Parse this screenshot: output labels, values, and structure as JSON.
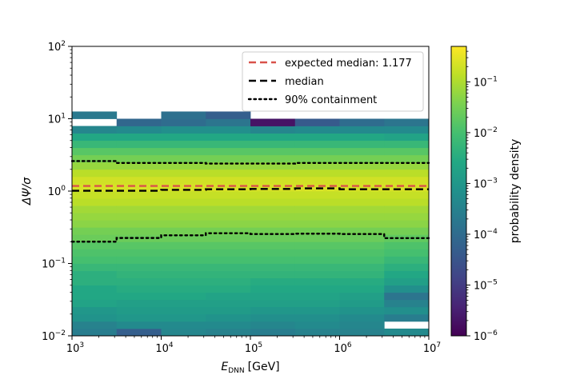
{
  "chart_data": {
    "type": "heatmap",
    "x_scale": "log",
    "y_scale": "log",
    "xlim": [
      1000,
      10000000
    ],
    "ylim": [
      0.01,
      100
    ],
    "xlabel": {
      "main": "E",
      "sub": "DNN",
      "unit": "[GeV]"
    },
    "ylabel": {
      "main": "ΔΨ/σ"
    },
    "x_ticks": [
      {
        "value": 1000,
        "base": "10",
        "exp": "3"
      },
      {
        "value": 10000,
        "base": "10",
        "exp": "4"
      },
      {
        "value": 100000,
        "base": "10",
        "exp": "5"
      },
      {
        "value": 1000000,
        "base": "10",
        "exp": "6"
      },
      {
        "value": 10000000,
        "base": "10",
        "exp": "7"
      }
    ],
    "y_ticks": [
      {
        "value": 0.01,
        "base": "10",
        "exp": "−2"
      },
      {
        "value": 0.1,
        "base": "10",
        "exp": "−1"
      },
      {
        "value": 1,
        "base": "10",
        "exp": "0"
      },
      {
        "value": 10,
        "base": "10",
        "exp": "1"
      },
      {
        "value": 100,
        "base": "10",
        "exp": "2"
      }
    ],
    "x_bin_edges": [
      1000,
      3162,
      10000,
      31623,
      100000,
      316228,
      1000000,
      3162278,
      10000000
    ],
    "y_bin_edges_log10": [
      -2.0,
      -1.9,
      -1.8,
      -1.7,
      -1.6,
      -1.5,
      -1.4,
      -1.3,
      -1.2,
      -1.1,
      -1.0,
      -0.9,
      -0.8,
      -0.7,
      -0.6,
      -0.5,
      -0.4,
      -0.3,
      -0.2,
      -0.1,
      0.0,
      0.1,
      0.2,
      0.3,
      0.4,
      0.5,
      0.6,
      0.7,
      0.8,
      0.9,
      1.0,
      1.1,
      1.2
    ],
    "density_log10_by_x_column": [
      [
        -3.6,
        -3.5,
        -3.1,
        -3.0,
        -2.7,
        -2.6,
        -2.6,
        -2.4,
        -2.4,
        -2.2,
        -2.0,
        -1.9,
        -1.8,
        -1.6,
        -1.5,
        -1.3,
        -1.2,
        -1.1,
        -0.9,
        -0.8,
        -0.65,
        -0.7,
        -0.9,
        -1.2,
        -1.5,
        -1.8,
        -2.2,
        -2.6,
        -3.4,
        null,
        -3.7,
        null
      ],
      [
        -4.3,
        -3.3,
        -3.0,
        -2.9,
        -2.8,
        -2.6,
        -2.5,
        -2.4,
        -2.3,
        -2.2,
        -2.0,
        -1.9,
        -1.8,
        -1.6,
        -1.5,
        -1.3,
        -1.2,
        -1.1,
        -0.9,
        -0.8,
        -0.65,
        -0.7,
        -0.9,
        -1.2,
        -1.5,
        -1.8,
        -2.2,
        -2.6,
        -3.3,
        -4.1,
        null,
        null
      ],
      [
        -3.4,
        -3.3,
        -3.0,
        -2.9,
        -2.8,
        -2.6,
        -2.5,
        -2.4,
        -2.3,
        -2.2,
        -2.0,
        -1.9,
        -1.8,
        -1.6,
        -1.5,
        -1.3,
        -1.2,
        -1.1,
        -0.9,
        -0.8,
        -0.65,
        -0.7,
        -0.9,
        -1.2,
        -1.5,
        -1.8,
        -2.2,
        -2.6,
        -3.2,
        -4.0,
        -3.9,
        null
      ],
      [
        -3.5,
        -3.3,
        -3.1,
        -2.9,
        -2.8,
        -2.7,
        -2.5,
        -2.4,
        -2.3,
        -2.2,
        -2.0,
        -1.9,
        -1.8,
        -1.6,
        -1.5,
        -1.3,
        -1.2,
        -1.1,
        -0.9,
        -0.8,
        -0.65,
        -0.7,
        -0.9,
        -1.2,
        -1.5,
        -1.8,
        -2.2,
        -2.6,
        -3.2,
        -3.8,
        -4.3,
        null
      ],
      [
        -3.6,
        -3.4,
        -3.2,
        -3.0,
        -2.8,
        -2.7,
        -2.6,
        -2.5,
        -2.3,
        -2.2,
        -2.0,
        -1.9,
        -1.8,
        -1.6,
        -1.5,
        -1.3,
        -1.2,
        -1.1,
        -0.9,
        -0.8,
        -0.65,
        -0.7,
        -0.9,
        -1.2,
        -1.5,
        -1.8,
        -2.2,
        -2.6,
        -3.4,
        -5.7,
        null,
        null
      ],
      [
        -3.5,
        -3.3,
        -3.2,
        -3.0,
        -2.8,
        -2.7,
        -2.6,
        -2.5,
        -2.3,
        -2.2,
        -2.0,
        -1.9,
        -1.8,
        -1.6,
        -1.5,
        -1.3,
        -1.2,
        -1.1,
        -0.9,
        -0.8,
        -0.65,
        -0.7,
        -0.9,
        -1.2,
        -1.5,
        -1.8,
        -2.2,
        -2.6,
        -3.3,
        -4.4,
        null,
        null
      ],
      [
        -3.5,
        -3.4,
        -3.3,
        -3.1,
        -2.9,
        -2.8,
        -2.6,
        -2.5,
        -2.3,
        -2.2,
        -2.0,
        -1.9,
        -1.8,
        -1.6,
        -1.5,
        -1.3,
        -1.2,
        -1.1,
        -0.9,
        -0.8,
        -0.65,
        -0.7,
        -0.9,
        -1.2,
        -1.5,
        -1.8,
        -2.2,
        -2.6,
        -3.3,
        -4.0,
        null,
        null
      ],
      [
        -3.3,
        null,
        -3.6,
        -3.2,
        -3.5,
        -3.8,
        -3.2,
        -2.8,
        -2.6,
        -2.4,
        -2.2,
        -2.0,
        -1.9,
        -1.7,
        -1.5,
        -1.3,
        -1.2,
        -1.1,
        -0.9,
        -0.8,
        -0.65,
        -0.7,
        -0.9,
        -1.2,
        -1.5,
        -1.8,
        -2.2,
        -2.7,
        -3.3,
        -3.8,
        null,
        null
      ]
    ],
    "series": [
      {
        "name": "expected median: 1.177",
        "style": "dashed",
        "color": "#d9524a",
        "x": [
          1000,
          10000000
        ],
        "y": [
          1.177,
          1.177
        ]
      },
      {
        "name": "median",
        "style": "dashed",
        "color": "#000000",
        "x": [
          1000,
          3162,
          3162,
          10000,
          10000,
          31623,
          31623,
          100000,
          100000,
          316228,
          316228,
          1000000,
          1000000,
          3162278,
          3162278,
          10000000
        ],
        "y": [
          1.01,
          1.01,
          1.01,
          1.01,
          1.04,
          1.04,
          1.06,
          1.06,
          1.07,
          1.07,
          1.09,
          1.09,
          1.06,
          1.06,
          1.06,
          1.06
        ]
      },
      {
        "name": "90% containment",
        "style": "dotted",
        "color": "#000000",
        "x": [
          1000,
          3162,
          3162,
          10000,
          10000,
          31623,
          31623,
          100000,
          100000,
          316228,
          316228,
          1000000,
          1000000,
          3162278,
          3162278,
          10000000
        ],
        "y": [
          2.6,
          2.6,
          2.45,
          2.45,
          2.45,
          2.45,
          2.4,
          2.4,
          2.4,
          2.4,
          2.45,
          2.45,
          2.45,
          2.45,
          2.45,
          2.45
        ]
      },
      {
        "name": "90% containment",
        "style": "dotted",
        "color": "#000000",
        "x": [
          1000,
          3162,
          3162,
          10000,
          10000,
          31623,
          31623,
          100000,
          100000,
          316228,
          316228,
          1000000,
          1000000,
          3162278,
          3162278,
          10000000
        ],
        "y": [
          0.2,
          0.2,
          0.225,
          0.225,
          0.245,
          0.245,
          0.262,
          0.262,
          0.255,
          0.255,
          0.258,
          0.258,
          0.255,
          0.255,
          0.224,
          0.224
        ]
      }
    ],
    "legend": {
      "placement": "top-right",
      "entries": [
        {
          "label": "expected median: 1.177",
          "style": "dashed",
          "color": "#d9524a"
        },
        {
          "label": "median",
          "style": "dashed",
          "color": "#000000"
        },
        {
          "label": "90% containment",
          "style": "dotted",
          "color": "#000000"
        }
      ]
    },
    "colorbar": {
      "label": "probability density",
      "scale": "log",
      "range": [
        1e-06,
        0.5
      ],
      "colormap": "viridis",
      "ticks": [
        {
          "value": 1e-06,
          "base": "10",
          "exp": "−6"
        },
        {
          "value": 1e-05,
          "base": "10",
          "exp": "−5"
        },
        {
          "value": 0.0001,
          "base": "10",
          "exp": "−4"
        },
        {
          "value": 0.001,
          "base": "10",
          "exp": "−3"
        },
        {
          "value": 0.01,
          "base": "10",
          "exp": "−2"
        },
        {
          "value": 0.1,
          "base": "10",
          "exp": "−1"
        }
      ]
    },
    "grid": false
  }
}
